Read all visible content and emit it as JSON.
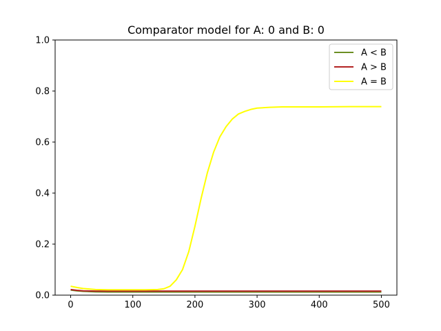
{
  "chart_data": {
    "type": "line",
    "title": "Comparator model for A: 0 and B: 0",
    "xlabel": "",
    "ylabel": "",
    "xlim": [
      -25,
      525
    ],
    "ylim": [
      0,
      1.0
    ],
    "xticks": [
      0,
      100,
      200,
      300,
      400,
      500
    ],
    "yticks": [
      0.0,
      0.2,
      0.4,
      0.6,
      0.8,
      1.0
    ],
    "xtick_labels": [
      "0",
      "100",
      "200",
      "300",
      "400",
      "500"
    ],
    "ytick_labels": [
      "0.0",
      "0.2",
      "0.4",
      "0.6",
      "0.8",
      "1.0"
    ],
    "grid": false,
    "legend_position": "top-right",
    "series": [
      {
        "name": "A < B",
        "color": "#6b8e23",
        "x": [
          0,
          10,
          20,
          40,
          60,
          100,
          200,
          300,
          400,
          500
        ],
        "y": [
          0.02,
          0.017,
          0.015,
          0.013,
          0.012,
          0.012,
          0.012,
          0.012,
          0.012,
          0.012
        ]
      },
      {
        "name": "A > B",
        "color": "#b22222",
        "x": [
          0,
          10,
          20,
          40,
          60,
          100,
          200,
          300,
          400,
          500
        ],
        "y": [
          0.022,
          0.019,
          0.017,
          0.016,
          0.016,
          0.016,
          0.016,
          0.016,
          0.016,
          0.016
        ]
      },
      {
        "name": "A = B",
        "color": "#ffff00",
        "x": [
          0,
          10,
          20,
          40,
          60,
          80,
          100,
          120,
          140,
          150,
          160,
          170,
          180,
          190,
          200,
          210,
          220,
          230,
          240,
          250,
          260,
          270,
          280,
          290,
          300,
          320,
          340,
          360,
          380,
          400,
          450,
          500
        ],
        "y": [
          0.035,
          0.03,
          0.026,
          0.022,
          0.021,
          0.021,
          0.021,
          0.021,
          0.022,
          0.025,
          0.035,
          0.06,
          0.1,
          0.17,
          0.27,
          0.38,
          0.48,
          0.56,
          0.62,
          0.66,
          0.69,
          0.71,
          0.72,
          0.728,
          0.733,
          0.736,
          0.738,
          0.738,
          0.738,
          0.738,
          0.739,
          0.739
        ]
      }
    ]
  }
}
